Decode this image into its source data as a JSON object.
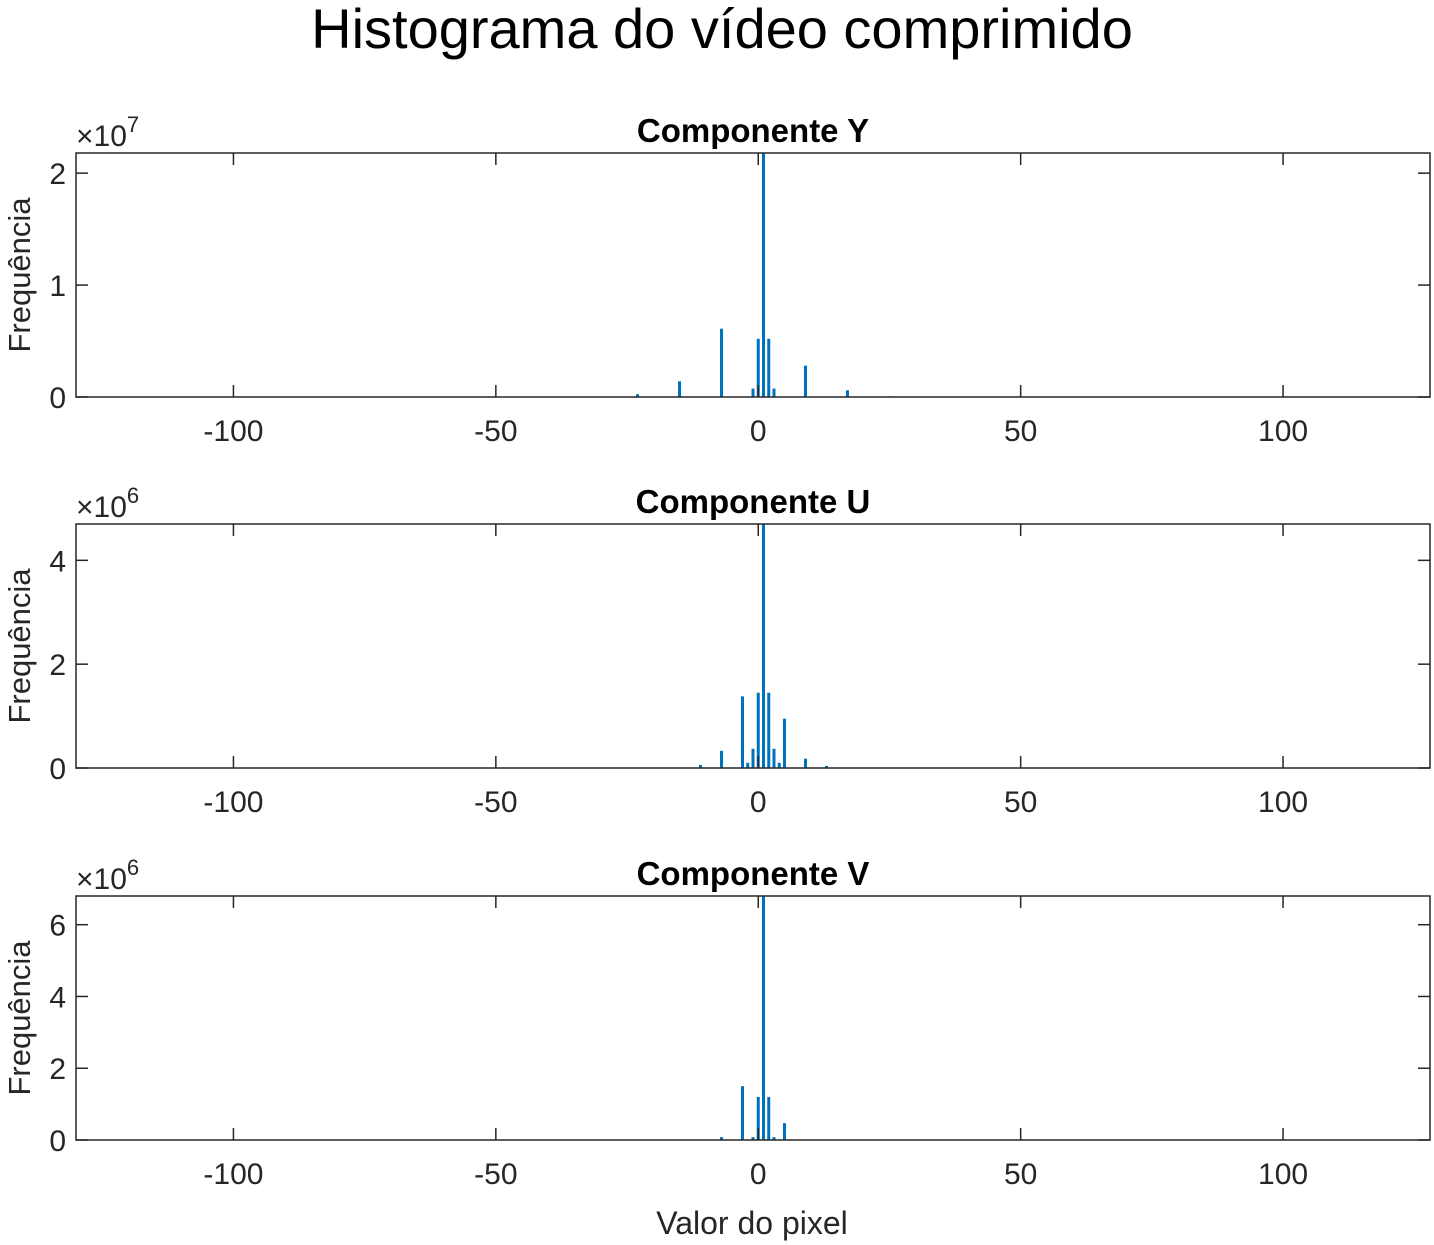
{
  "figure": {
    "title": "Histograma do vídeo comprimido",
    "xlabel": "Valor do pixel",
    "bar_color": "#0072BD"
  },
  "chart_data": [
    {
      "type": "bar",
      "title": "Componente Y",
      "xlabel": "",
      "ylabel": "Frequência",
      "xlim": [
        -130,
        128
      ],
      "ylim": [
        0,
        21800000
      ],
      "exponent_label": "×10",
      "exponent": "7",
      "x_ticks": [
        -100,
        -50,
        0,
        50,
        100
      ],
      "x_tick_labels": [
        "-100",
        "-50",
        "0",
        "50",
        "100"
      ],
      "y_ticks": [
        0,
        10000000,
        20000000
      ],
      "y_tick_labels": [
        "0",
        "1",
        "2"
      ],
      "x": [
        -23,
        -15,
        -7,
        -1,
        0,
        1,
        2,
        3,
        9,
        17,
        25
      ],
      "values": [
        250000,
        1400000,
        6100000,
        750000,
        5200000,
        21800000,
        5200000,
        750000,
        2800000,
        600000,
        60000
      ]
    },
    {
      "type": "bar",
      "title": "Componente U",
      "xlabel": "",
      "ylabel": "Frequência",
      "xlim": [
        -130,
        128
      ],
      "ylim": [
        0,
        4700000
      ],
      "exponent_label": "×10",
      "exponent": "6",
      "x_ticks": [
        -100,
        -50,
        0,
        50,
        100
      ],
      "x_tick_labels": [
        "-100",
        "-50",
        "0",
        "50",
        "100"
      ],
      "y_ticks": [
        0,
        2000000,
        4000000
      ],
      "y_tick_labels": [
        "0",
        "2",
        "4"
      ],
      "x": [
        -11,
        -7,
        -3,
        -2,
        -1,
        0,
        1,
        2,
        3,
        4,
        5,
        9,
        13
      ],
      "values": [
        60000,
        330000,
        1380000,
        100000,
        370000,
        1450000,
        4700000,
        1450000,
        370000,
        100000,
        950000,
        180000,
        40000
      ]
    },
    {
      "type": "bar",
      "title": "Componente V",
      "xlabel": "Valor do pixel",
      "ylabel": "Frequência",
      "xlim": [
        -130,
        128
      ],
      "ylim": [
        0,
        6800000
      ],
      "exponent_label": "×10",
      "exponent": "6",
      "x_ticks": [
        -100,
        -50,
        0,
        50,
        100
      ],
      "x_tick_labels": [
        "-100",
        "-50",
        "0",
        "50",
        "100"
      ],
      "y_ticks": [
        0,
        2000000,
        4000000,
        6000000
      ],
      "y_tick_labels": [
        "0",
        "2",
        "4",
        "6"
      ],
      "x": [
        -7,
        -3,
        -1,
        0,
        1,
        2,
        3,
        5
      ],
      "values": [
        80000,
        1500000,
        80000,
        1200000,
        6800000,
        1200000,
        80000,
        470000
      ]
    }
  ]
}
